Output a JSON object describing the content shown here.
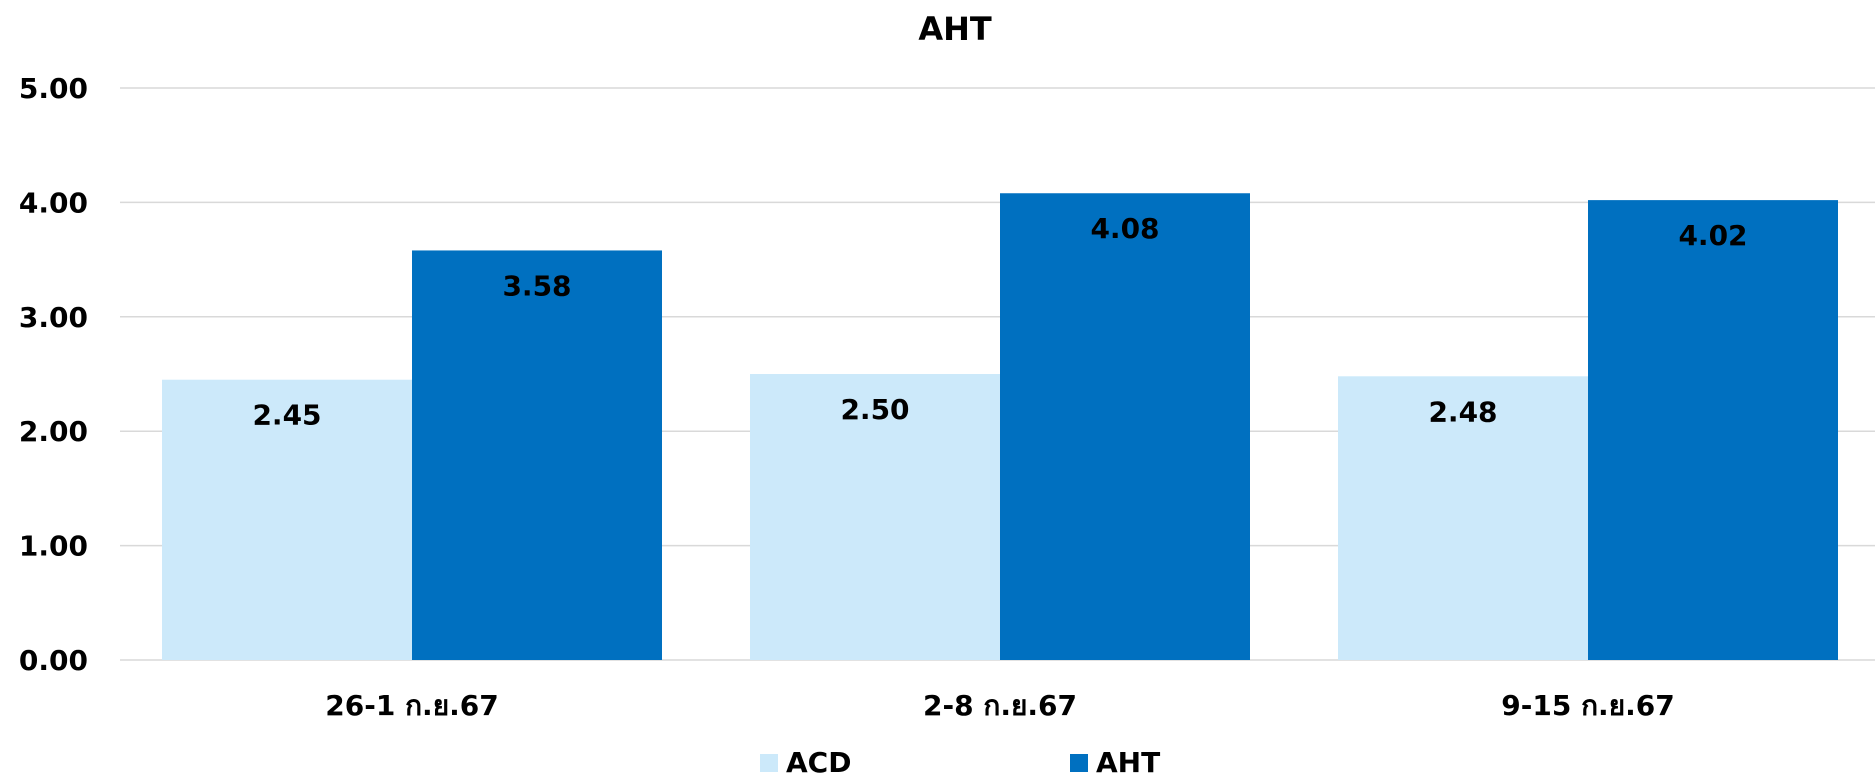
{
  "chart_data": {
    "type": "bar",
    "title": "AHT",
    "categories": [
      "26-1 ก.ย.67",
      "2-8 ก.ย.67",
      "9-15 ก.ย.67"
    ],
    "series": [
      {
        "name": "ACD",
        "values": [
          2.45,
          2.5,
          2.48
        ],
        "color": "#CCE9FA"
      },
      {
        "name": "AHT",
        "values": [
          3.58,
          4.08,
          4.02
        ],
        "color": "#0070C0"
      }
    ],
    "ylim": [
      0,
      5
    ],
    "yticks": [
      "0.00",
      "1.00",
      "2.00",
      "3.00",
      "4.00",
      "5.00"
    ],
    "grid": true,
    "legend_position": "bottom",
    "data_labels": true
  }
}
